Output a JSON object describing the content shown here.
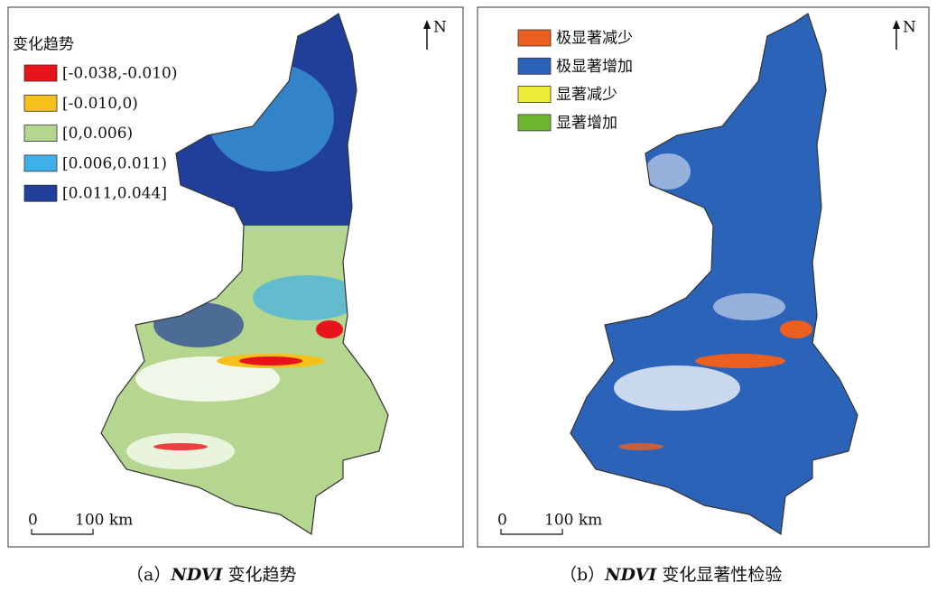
{
  "panels": [
    {
      "legend_title": "变化趋势",
      "legend": [
        {
          "label": "[-0.038,-0.010)",
          "color": "#e8141c"
        },
        {
          "label": "[-0.010,0)",
          "color": "#f5c01a"
        },
        {
          "label": "[0,0.006)",
          "color": "#b5d68e"
        },
        {
          "label": "[0.006,0.011)",
          "color": "#3fb1e8"
        },
        {
          "label": "[0.011,0.044]",
          "color": "#1f3f9a"
        }
      ],
      "north": "N",
      "scale_start": "0",
      "scale_end": "100 km",
      "caption": {
        "prefix": "（a）",
        "italic": "NDVI",
        "text": "变化趋势"
      }
    },
    {
      "legend": [
        {
          "label": "极显著减少",
          "color": "#ec5f1f"
        },
        {
          "label": "极显著增加",
          "color": "#2b63b8"
        },
        {
          "label": "显著减少",
          "color": "#eeeb3a"
        },
        {
          "label": "显著增加",
          "color": "#6db52e"
        }
      ],
      "north": "N",
      "scale_start": "0",
      "scale_end": "100 km",
      "caption": {
        "prefix": "（b）",
        "italic": "NDVI",
        "text": "变化显著性检验"
      }
    }
  ]
}
